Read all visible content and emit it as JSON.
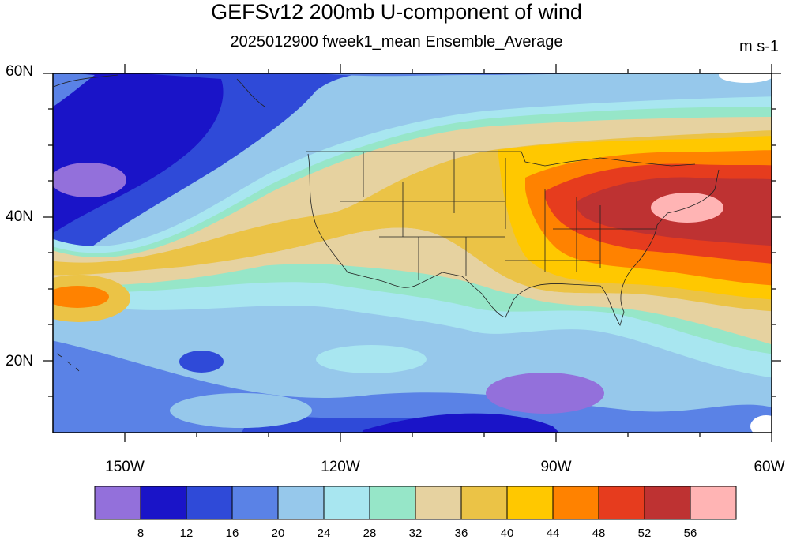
{
  "title": "GEFSv12 200mb U-component of wind",
  "subtitle": "2025012900 fweek1_mean Ensemble_Average",
  "units": "m s-1",
  "map": {
    "lon_range": [
      -160,
      -60
    ],
    "lat_range": [
      10,
      60
    ],
    "lat_ticks": [
      "60N",
      "40N",
      "20N"
    ],
    "lon_ticks": [
      "150W",
      "120W",
      "90W",
      "60W"
    ]
  },
  "colorbar": {
    "levels": [
      "8",
      "12",
      "16",
      "20",
      "24",
      "28",
      "32",
      "36",
      "40",
      "44",
      "48",
      "52",
      "56"
    ],
    "colors": [
      "#9370db",
      "#1a14c8",
      "#2f4ad8",
      "#5a82e6",
      "#96c8eb",
      "#a8e6f0",
      "#96e6c8",
      "#e6d2a0",
      "#ebc346",
      "#ffc800",
      "#ff8200",
      "#e63c1e",
      "#be3232",
      "#ffb4b4"
    ]
  }
}
